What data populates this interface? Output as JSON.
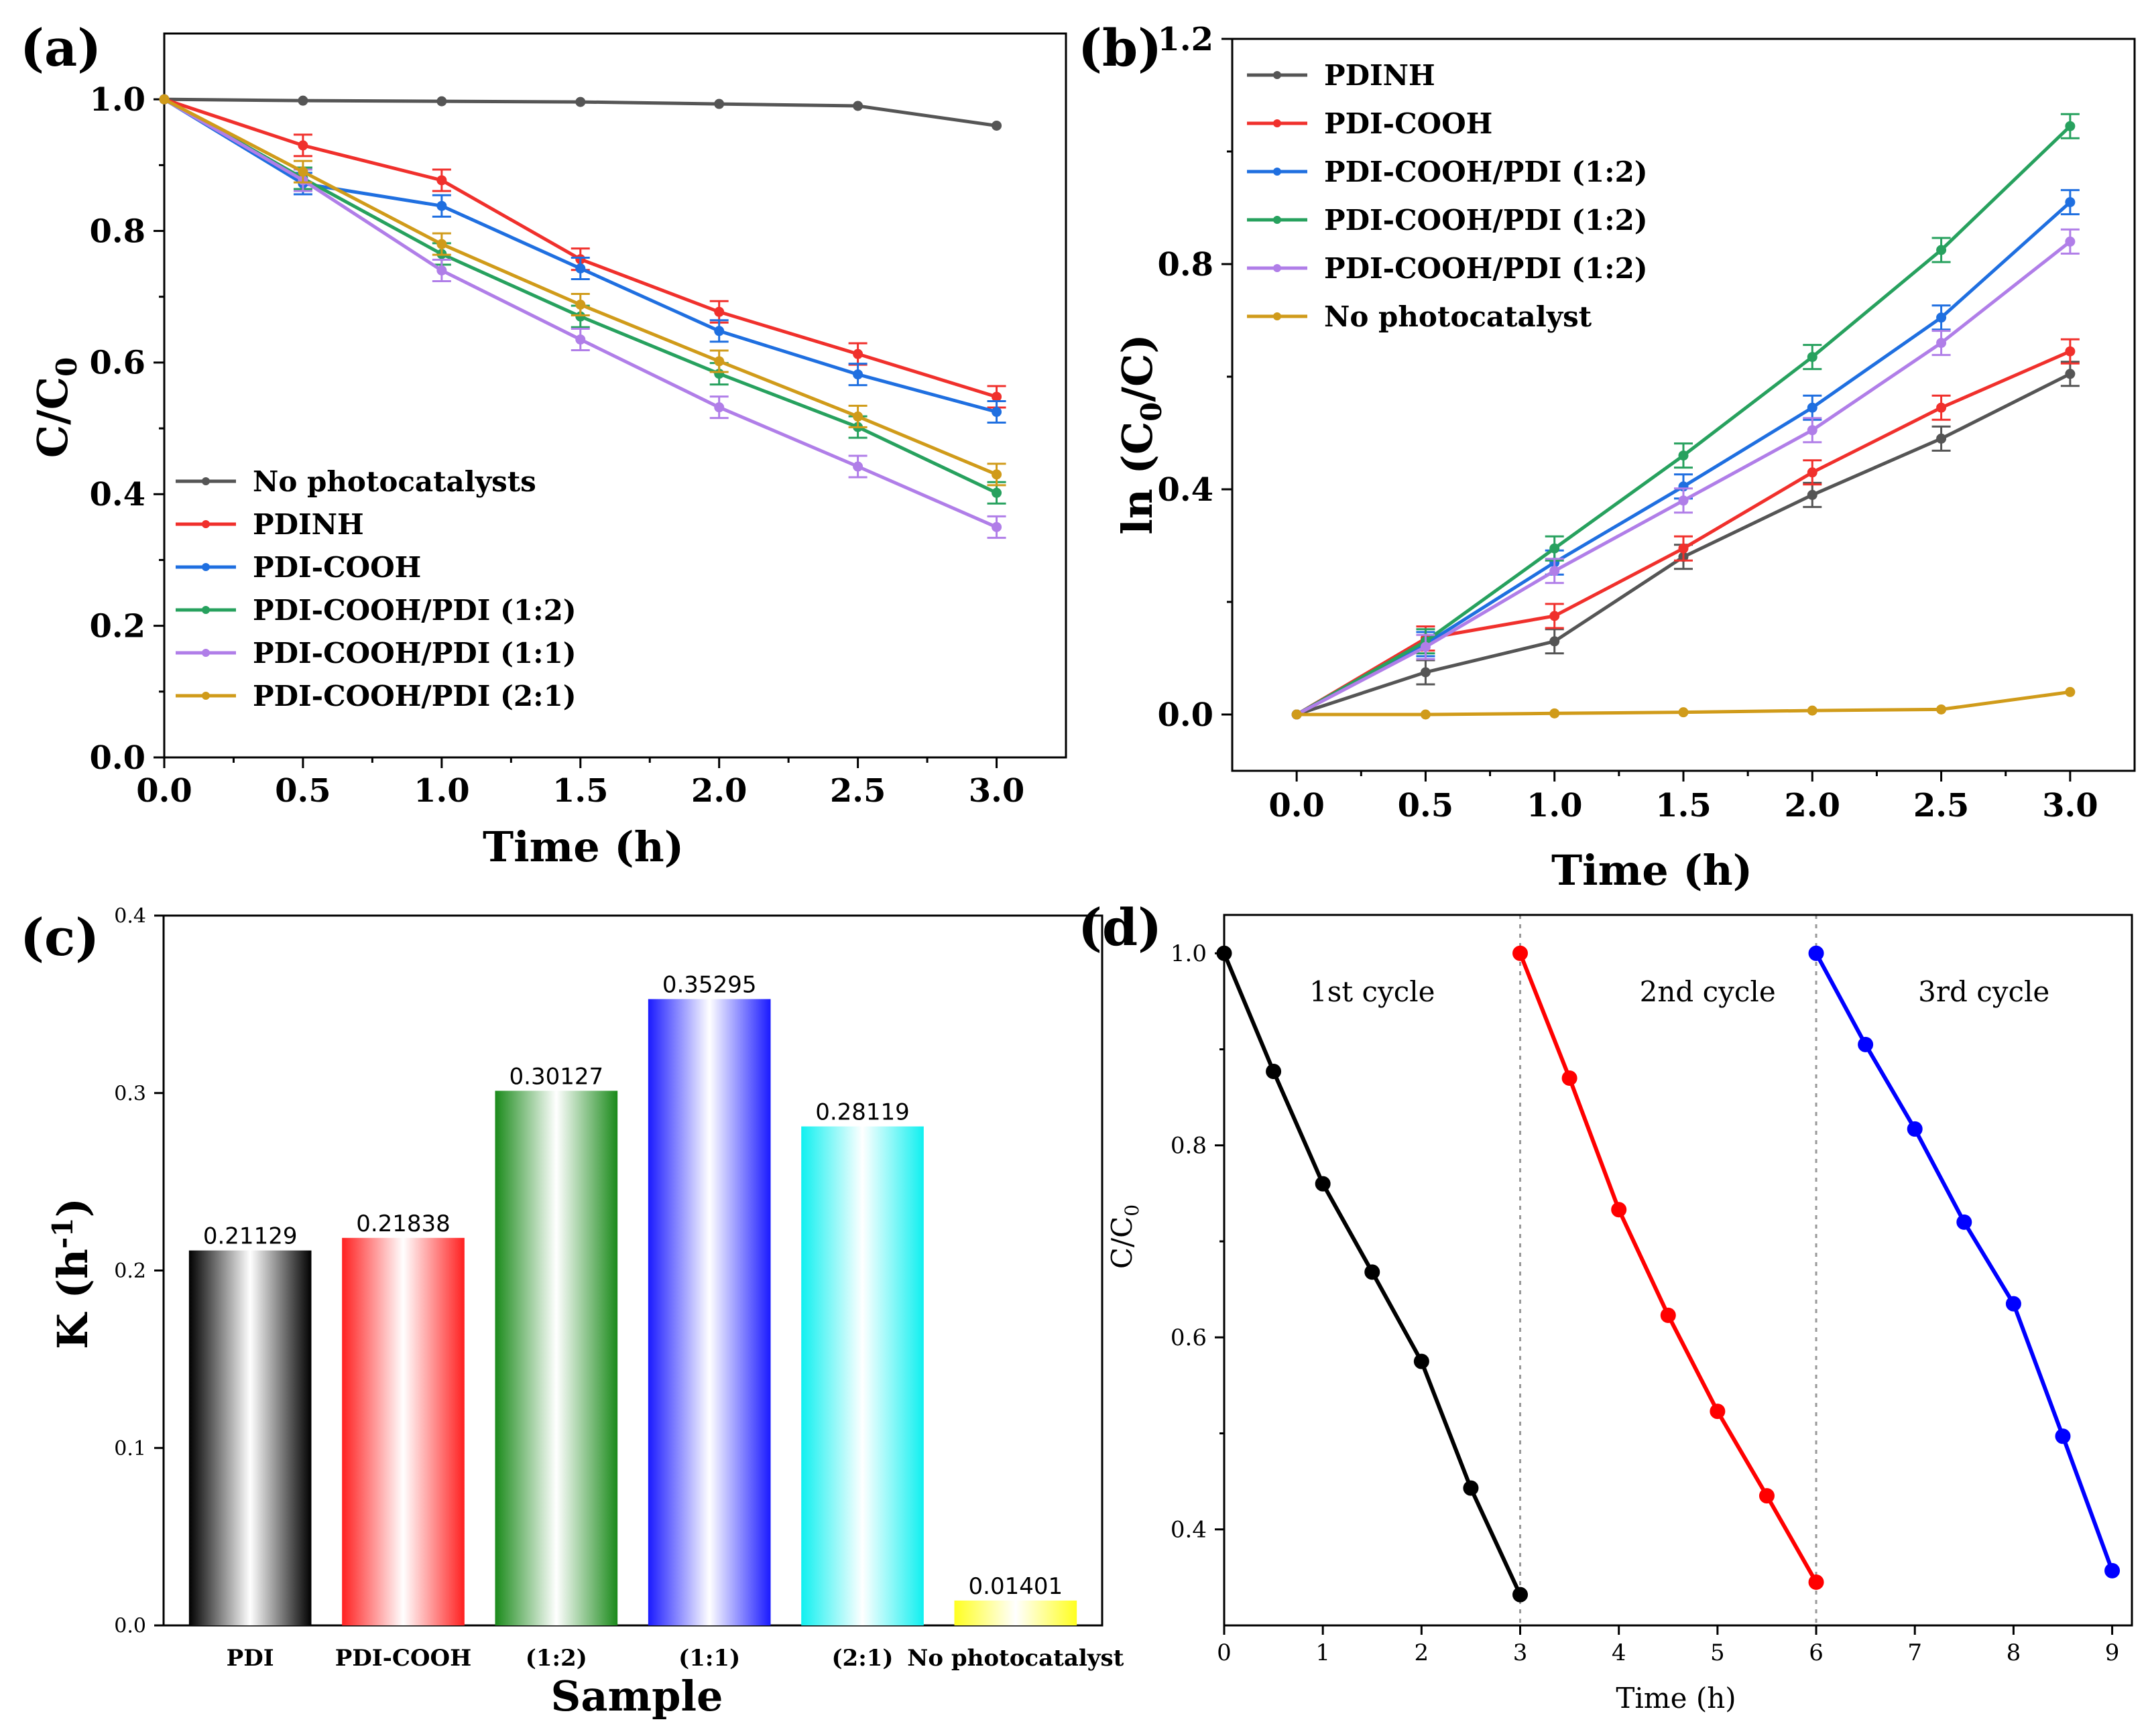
{
  "chart_data": [
    {
      "id": "a",
      "type": "line",
      "panel_label": "(a)",
      "xlabel": "Time (h)",
      "ylabel": "C/C",
      "ylabel_sub": "0",
      "xlim": [
        0,
        3.25
      ],
      "ylim": [
        0,
        1.1
      ],
      "x_ticks": [
        "0.0",
        "0.5",
        "1.0",
        "1.5",
        "2.0",
        "2.5",
        "3.0"
      ],
      "y_ticks": [
        "0.0",
        "0.2",
        "0.4",
        "0.6",
        "0.8",
        "1.0"
      ],
      "legend_position": "bottom-left",
      "x": [
        0,
        0.5,
        1.0,
        1.5,
        2.0,
        2.5,
        3.0
      ],
      "series": [
        {
          "name": "No photocatalysts",
          "color": "#555555",
          "errorbars": false,
          "values": [
            1.0,
            0.998,
            0.997,
            0.996,
            0.993,
            0.99,
            0.96
          ]
        },
        {
          "name": "PDINH",
          "color": "#f0302c",
          "errorbars": true,
          "values": [
            1.0,
            0.93,
            0.877,
            0.757,
            0.677,
            0.613,
            0.548
          ]
        },
        {
          "name": "PDI-COOH",
          "color": "#1f6fe0",
          "errorbars": true,
          "values": [
            1.0,
            0.872,
            0.838,
            0.743,
            0.648,
            0.582,
            0.525
          ]
        },
        {
          "name": "PDI-COOH/PDI (1:2)",
          "color": "#27a15e",
          "errorbars": true,
          "values": [
            1.0,
            0.88,
            0.765,
            0.67,
            0.583,
            0.502,
            0.402
          ]
        },
        {
          "name": "PDI-COOH/PDI (1:1)",
          "color": "#b07ee8",
          "errorbars": true,
          "values": [
            1.0,
            0.877,
            0.74,
            0.635,
            0.532,
            0.442,
            0.35
          ]
        },
        {
          "name": "PDI-COOH/PDI (2:1)",
          "color": "#d09b1a",
          "errorbars": true,
          "values": [
            1.0,
            0.89,
            0.78,
            0.688,
            0.602,
            0.518,
            0.43
          ]
        }
      ]
    },
    {
      "id": "b",
      "type": "line",
      "panel_label": "(b)",
      "xlabel": "Time (h)",
      "ylabel_pre": "ln (C",
      "ylabel_sub": "0",
      "ylabel_post": "/C)",
      "xlim": [
        -0.25,
        3.25
      ],
      "ylim": [
        -0.1,
        1.2
      ],
      "x_ticks": [
        "0.0",
        "0.5",
        "1.0",
        "1.5",
        "2.0",
        "2.5",
        "3.0"
      ],
      "y_ticks": [
        "0.0",
        "0.4",
        "0.8",
        "1.2"
      ],
      "legend_position": "top-left",
      "x": [
        0,
        0.5,
        1.0,
        1.5,
        2.0,
        2.5,
        3.0
      ],
      "series": [
        {
          "name": "PDINH",
          "color": "#555555",
          "errorbars": true,
          "values": [
            0,
            0.075,
            0.13,
            0.28,
            0.39,
            0.49,
            0.605
          ]
        },
        {
          "name": "PDI-COOH",
          "color": "#f0302c",
          "errorbars": true,
          "values": [
            0,
            0.135,
            0.175,
            0.295,
            0.43,
            0.545,
            0.645
          ]
        },
        {
          "name": "PDI-COOH/PDI (1:2)",
          "color": "#1f6fe0",
          "errorbars": true,
          "values": [
            0,
            0.125,
            0.27,
            0.405,
            0.545,
            0.705,
            0.91
          ]
        },
        {
          "name": "PDI-COOH/PDI (1:2)",
          "color": "#27a15e",
          "errorbars": true,
          "values": [
            0,
            0.13,
            0.295,
            0.46,
            0.635,
            0.825,
            1.045
          ]
        },
        {
          "name": "PDI-COOH/PDI (1:2)",
          "color": "#b07ee8",
          "errorbars": true,
          "values": [
            0,
            0.12,
            0.255,
            0.38,
            0.505,
            0.66,
            0.84
          ]
        },
        {
          "name": "No photocatalyst",
          "color": "#d09b1a",
          "errorbars": false,
          "values": [
            0,
            0.0,
            0.002,
            0.004,
            0.007,
            0.009,
            0.04
          ]
        }
      ]
    },
    {
      "id": "c",
      "type": "bar",
      "panel_label": "(c)",
      "xlabel": "Sample",
      "ylabel_pre": "K (h",
      "ylabel_sup": "-1",
      "ylabel_post": ")",
      "ylim": [
        0,
        0.4
      ],
      "y_ticks": [
        "0.0",
        "0.1",
        "0.2",
        "0.3",
        "0.4"
      ],
      "categories": [
        "PDI",
        "PDI-COOH",
        "(1:2)",
        "(1:1)",
        "(2:1)",
        "No photocatalyst"
      ],
      "values": [
        0.21129,
        0.21838,
        0.30127,
        0.35295,
        0.28119,
        0.01401
      ],
      "data_labels": [
        "0.21129",
        "0.21838",
        "0.30127",
        "0.35295",
        "0.28119",
        "0.01401"
      ],
      "colors": [
        "#000000",
        "#ff2020",
        "#1a8a1a",
        "#1a1aff",
        "#10f0f0",
        "#ffff20"
      ]
    },
    {
      "id": "d",
      "type": "line",
      "panel_label": "(d)",
      "xlabel": "Time (h)",
      "ylabel": "C/C",
      "ylabel_sub": "0",
      "xlim": [
        0,
        9.2
      ],
      "ylim": [
        0.3,
        1.04
      ],
      "x_ticks": [
        "0",
        "1",
        "2",
        "3",
        "4",
        "5",
        "6",
        "7",
        "8",
        "9"
      ],
      "y_ticks": [
        "0.4",
        "0.6",
        "0.8",
        "1.0"
      ],
      "cycle_dividers": [
        3,
        6
      ],
      "series": [
        {
          "name": "1st cycle",
          "color": "#000000",
          "x": [
            0,
            0.5,
            1,
            1.5,
            2,
            2.5,
            3
          ],
          "values": [
            1.0,
            0.877,
            0.76,
            0.668,
            0.575,
            0.443,
            0.332
          ]
        },
        {
          "name": "2nd cycle",
          "color": "#ff0000",
          "x": [
            3,
            3.5,
            4,
            4.5,
            5,
            5.5,
            6
          ],
          "values": [
            1.0,
            0.87,
            0.733,
            0.623,
            0.523,
            0.435,
            0.345
          ]
        },
        {
          "name": "3rd cycle",
          "color": "#0000ff",
          "x": [
            6,
            6.5,
            7,
            7.5,
            8,
            8.5,
            9
          ],
          "values": [
            1.0,
            0.905,
            0.817,
            0.72,
            0.635,
            0.497,
            0.357
          ]
        }
      ]
    }
  ]
}
